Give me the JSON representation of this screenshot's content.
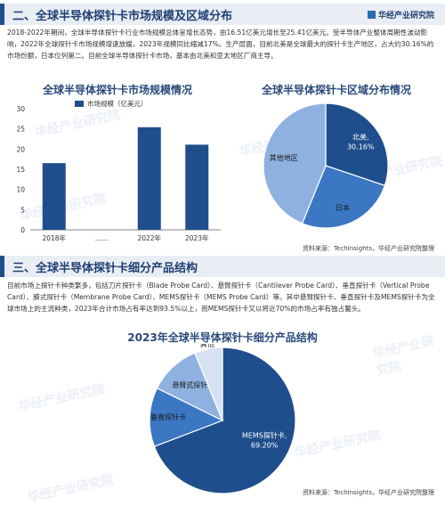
{
  "watermark": "华经产业研究院",
  "brand": "华经产业研究院",
  "section1": {
    "title": "二、全球半导体探针卡市场规模及区域分布",
    "paragraph": "2018-2022年期间，全球半导体探针卡行业市场规模总体呈增长态势，由16.51亿美元增长至25.41亿美元。受半导体产业整体周期性波动影响，2022年全球探针卡市场规模增速放缓，2023年规模同比缩减17%。生产层面，目前北美是全球最大的探针卡生产地区，占大约30.16%的市场份额，日本位列第二。目前全球半导体探针卡市场，基本由北美和亚太地区厂商主导。",
    "source": "资料来源：TechInsights，华经产业研究院整理"
  },
  "section2": {
    "title": "三、全球半导体探针卡细分产品结构",
    "paragraph": "目前市场上探针卡种类繁多，包括刀片探针卡（Blade Probe Card）、悬臂探针卡（Cantilever Probe Card）、垂直探针卡（Vertical Probe Card）、膜式探针卡（Membrane Probe Card）、MEMS探针卡（MEMS Probe Card）等。其中悬臂探针卡、垂直探针卡及MEMS探针卡为全球市场上的主流种类，2023年合计市场占有率达到93.5%以上，而MEMS探针卡又以将近70%的市场占率有独占鳌头。",
    "source": "资料来源：TechInsights，华经产业研究院整理"
  },
  "chart_data": [
    {
      "type": "bar",
      "title": "全球半导体探针卡市场规模情况",
      "legend": "市场规模（亿美元）",
      "categories": [
        "2018年",
        "……",
        "2022年",
        "2023年"
      ],
      "values": [
        16.51,
        null,
        25.41,
        21.09
      ],
      "ylim": [
        0,
        30
      ],
      "yticks": [
        "0",
        "5",
        "10",
        "15",
        "20",
        "25",
        "30"
      ],
      "grid": false,
      "color": "#1f4e8c"
    },
    {
      "type": "pie",
      "title": "全球半导体探针卡区域分布情况",
      "slices": [
        {
          "label": "北美,",
          "value_label": "30.16%",
          "value": 30.16,
          "color": "#1f4e8c",
          "text_color": "#ffffff"
        },
        {
          "label": "日本",
          "value_label": "",
          "value": 26.0,
          "color": "#3b77c3",
          "text_color": "#1a1a1a"
        },
        {
          "label": "其他地区",
          "value_label": "",
          "value": 43.84,
          "color": "#8fb1e0",
          "text_color": "#1a1a1a"
        }
      ]
    },
    {
      "type": "pie",
      "title": "2023年全球半导体探针卡细分产品结构",
      "slices": [
        {
          "label": "MEMS探针卡,",
          "value_label": "69.20%",
          "value": 69.2,
          "color": "#1f4e8c",
          "text_color": "#ffffff"
        },
        {
          "label": "垂直探针卡",
          "value_label": "",
          "value": 13.1,
          "color": "#3b77c3",
          "text_color": "#1a1a1a"
        },
        {
          "label": "悬臂式探针卡",
          "value_label": "",
          "value": 11.5,
          "color": "#8fb1e0",
          "text_color": "#1a1a1a"
        },
        {
          "label": "其他",
          "value_label": "",
          "value": 6.2,
          "color": "#d6e2f3",
          "text_color": "#1a1a1a"
        }
      ]
    }
  ]
}
